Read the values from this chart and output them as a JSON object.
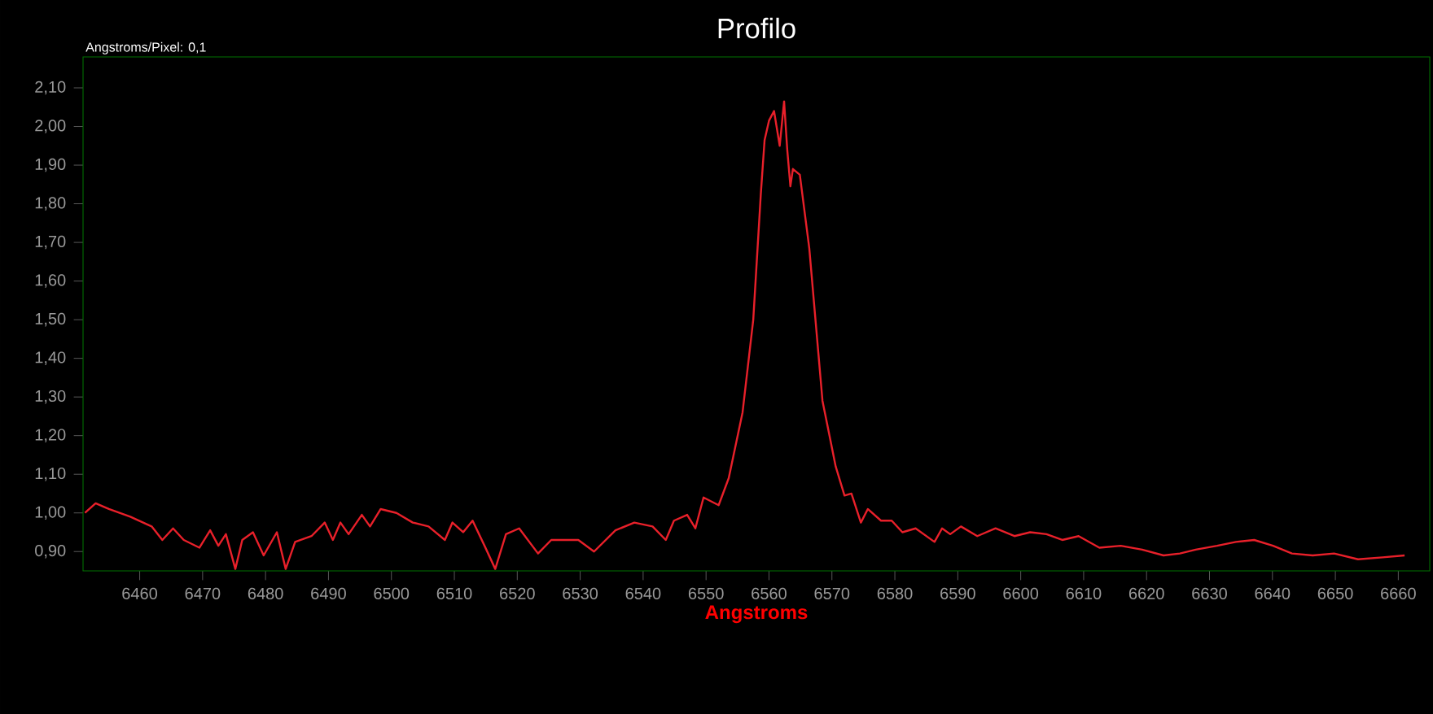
{
  "chart_data": {
    "type": "line",
    "title": "Profilo",
    "xlabel": "Angstroms",
    "annotations": [
      "Angstroms/Pixel: 0,1"
    ],
    "x": [
      6451.3,
      6453.0,
      6455.1,
      6458.5,
      6461.9,
      6463.6,
      6465.3,
      6467.0,
      6469.5,
      6471.2,
      6472.5,
      6473.7,
      6475.2,
      6476.3,
      6478.0,
      6479.7,
      6481.8,
      6483.2,
      6484.7,
      6487.3,
      6489.4,
      6490.7,
      6491.9,
      6493.2,
      6495.3,
      6496.6,
      6498.3,
      6500.8,
      6503.4,
      6505.9,
      6508.5,
      6509.7,
      6511.4,
      6512.9,
      6514.8,
      6516.5,
      6518.2,
      6520.3,
      6523.3,
      6525.4,
      6529.7,
      6532.2,
      6535.6,
      6538.6,
      6541.5,
      6543.6,
      6544.9,
      6547.0,
      6548.3,
      6549.6,
      6552.0,
      6553.6,
      6555.8,
      6557.5,
      6558.7,
      6559.3,
      6560.0,
      6560.8,
      6561.7,
      6562.4,
      6562.9,
      6563.4,
      6563.8,
      6564.9,
      6566.4,
      6568.5,
      6570.6,
      6572.0,
      6573.1,
      6574.6,
      6575.7,
      6577.8,
      6579.5,
      6581.2,
      6583.3,
      6586.3,
      6587.5,
      6588.8,
      6590.5,
      6593.1,
      6596.0,
      6599.0,
      6601.5,
      6604.1,
      6606.6,
      6609.2,
      6612.5,
      6615.9,
      6619.3,
      6622.7,
      6625.3,
      6627.8,
      6631.2,
      6634.2,
      6637.1,
      6640.1,
      6643.1,
      6646.4,
      6649.8,
      6653.6,
      6657.5,
      6661.0
    ],
    "series": [
      {
        "color": "#e8202a",
        "values": [
          1.0,
          1.025,
          1.01,
          0.99,
          0.965,
          0.93,
          0.96,
          0.93,
          0.91,
          0.955,
          0.915,
          0.945,
          0.855,
          0.93,
          0.95,
          0.89,
          0.95,
          0.855,
          0.925,
          0.94,
          0.975,
          0.93,
          0.975,
          0.945,
          0.995,
          0.965,
          1.01,
          1.0,
          0.975,
          0.965,
          0.93,
          0.975,
          0.95,
          0.98,
          0.915,
          0.855,
          0.945,
          0.96,
          0.895,
          0.93,
          0.93,
          0.9,
          0.955,
          0.975,
          0.965,
          0.93,
          0.98,
          0.995,
          0.96,
          1.04,
          1.02,
          1.09,
          1.26,
          1.5,
          1.825,
          1.965,
          2.015,
          2.04,
          1.95,
          2.065,
          1.94,
          1.845,
          1.89,
          1.875,
          1.685,
          1.29,
          1.12,
          1.045,
          1.05,
          0.975,
          1.01,
          0.98,
          0.98,
          0.95,
          0.96,
          0.925,
          0.96,
          0.945,
          0.965,
          0.94,
          0.96,
          0.94,
          0.95,
          0.945,
          0.93,
          0.94,
          0.91,
          0.915,
          0.905,
          0.89,
          0.895,
          0.905,
          0.915,
          0.925,
          0.93,
          0.915,
          0.895,
          0.89,
          0.895,
          0.88,
          0.885,
          0.89
        ]
      }
    ],
    "xlim": [
      6451,
      6665
    ],
    "ylim": [
      0.85,
      2.18
    ],
    "xticks": [
      6460,
      6470,
      6480,
      6490,
      6500,
      6510,
      6520,
      6530,
      6540,
      6550,
      6560,
      6570,
      6580,
      6590,
      6600,
      6610,
      6620,
      6630,
      6640,
      6650,
      6660
    ],
    "yticks": [
      {
        "value": 0.9,
        "label": "0,90"
      },
      {
        "value": 1.0,
        "label": "1,00"
      },
      {
        "value": 1.1,
        "label": "1,10"
      },
      {
        "value": 1.2,
        "label": "1,20"
      },
      {
        "value": 1.3,
        "label": "1,30"
      },
      {
        "value": 1.4,
        "label": "1,40"
      },
      {
        "value": 1.5,
        "label": "1,50"
      },
      {
        "value": 1.6,
        "label": "1,60"
      },
      {
        "value": 1.7,
        "label": "1,70"
      },
      {
        "value": 1.8,
        "label": "1,80"
      },
      {
        "value": 1.9,
        "label": "1,90"
      },
      {
        "value": 2.0,
        "label": "2,00"
      },
      {
        "value": 2.1,
        "label": "2,10"
      }
    ],
    "line_style": "solid"
  }
}
